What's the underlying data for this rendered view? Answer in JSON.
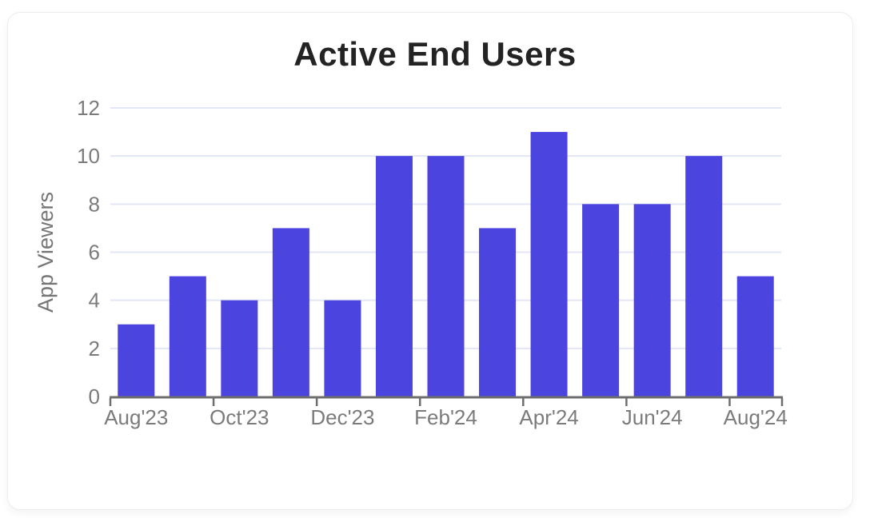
{
  "chart_data": {
    "type": "bar",
    "title": "Active End Users",
    "xlabel": "",
    "ylabel": "App Viewers",
    "categories": [
      "Aug'23",
      "Sep'23",
      "Oct'23",
      "Nov'23",
      "Dec'23",
      "Jan'24",
      "Feb'24",
      "Mar'24",
      "Apr'24",
      "May'24",
      "Jun'24",
      "Jul'24",
      "Aug'24"
    ],
    "values": [
      3,
      5,
      4,
      7,
      4,
      10,
      10,
      7,
      11,
      8,
      8,
      10,
      5
    ],
    "ylim": [
      0,
      12
    ],
    "yticks": [
      0,
      2,
      4,
      6,
      8,
      10,
      12
    ],
    "xtick_labels": [
      "Aug'23",
      "Oct'23",
      "Dec'23",
      "Feb'24",
      "Apr'24",
      "Jun'24",
      "Aug'24"
    ],
    "xtick_label_every": 2,
    "grid": true,
    "legend": false,
    "colors": {
      "bar": "#4c44df",
      "grid": "#e3e6f5",
      "axis": "#6e6e6e",
      "tick_label": "#7b7b7b",
      "axis_title": "#757575",
      "title": "#232323"
    }
  }
}
